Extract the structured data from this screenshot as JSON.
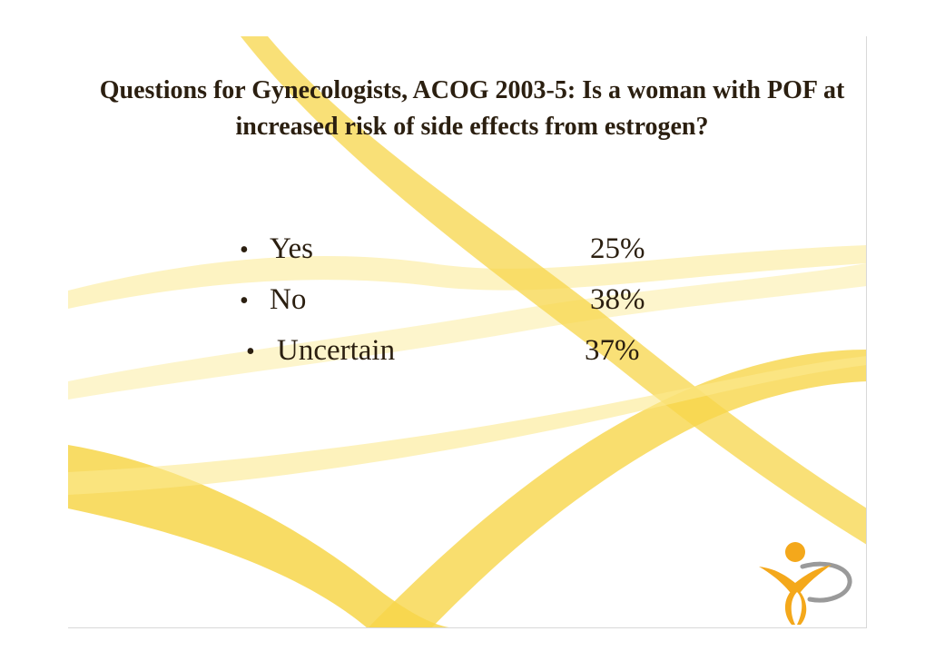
{
  "slide": {
    "title": "Questions for Gynecologists, ACOG 2003-5: Is a woman with POF at increased risk of side effects from estrogen?",
    "items": [
      {
        "label": "Yes",
        "value": "25%"
      },
      {
        "label": "No",
        "value": "38%"
      },
      {
        "label": "Uncertain",
        "value": "37%"
      }
    ],
    "bullet": "•",
    "colors": {
      "swoosh": "#f7d64a",
      "swoosh_light": "#fbe98f",
      "text": "#2b1f10",
      "logo_orange": "#f4a81b",
      "logo_gray": "#9a9a9a"
    },
    "logo_icon": "figure-logo-icon"
  }
}
